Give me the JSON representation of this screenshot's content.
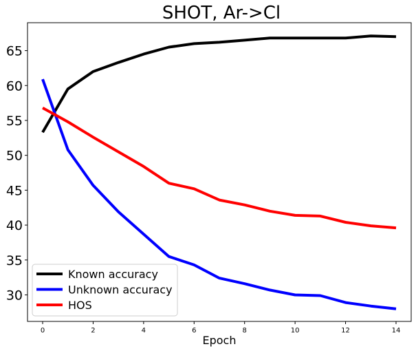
{
  "chart_data": {
    "type": "line",
    "title": "SHOT, Ar->Cl",
    "xlabel": "Epoch",
    "ylabel": "",
    "xlim": [
      -0.6,
      14.6
    ],
    "ylim": [
      26.2,
      69.0
    ],
    "xticks": [
      0,
      2,
      4,
      6,
      8,
      10,
      12,
      14
    ],
    "yticks": [
      30,
      35,
      40,
      45,
      50,
      55,
      60,
      65
    ],
    "grid": false,
    "legend_position": "lower-left",
    "x": [
      0,
      1,
      2,
      3,
      4,
      5,
      6,
      7,
      8,
      9,
      10,
      11,
      12,
      13,
      14
    ],
    "series": [
      {
        "name": "Known accuracy",
        "color": "#000000",
        "values": [
          53.3,
          59.5,
          62.0,
          63.3,
          64.5,
          65.5,
          66.0,
          66.2,
          66.5,
          66.8,
          66.8,
          66.8,
          66.8,
          67.1,
          67.0
        ]
      },
      {
        "name": "Unknown accuracy",
        "color": "#0000ff",
        "values": [
          60.9,
          50.8,
          45.7,
          41.9,
          38.7,
          35.5,
          34.3,
          32.4,
          31.6,
          30.7,
          30.0,
          29.9,
          28.9,
          28.4,
          28.0
        ]
      },
      {
        "name": "HOS",
        "color": "#ff0000",
        "values": [
          56.8,
          54.8,
          52.6,
          50.5,
          48.4,
          46.0,
          45.2,
          43.6,
          42.9,
          42.0,
          41.4,
          41.3,
          40.4,
          39.9,
          39.6
        ]
      }
    ]
  }
}
